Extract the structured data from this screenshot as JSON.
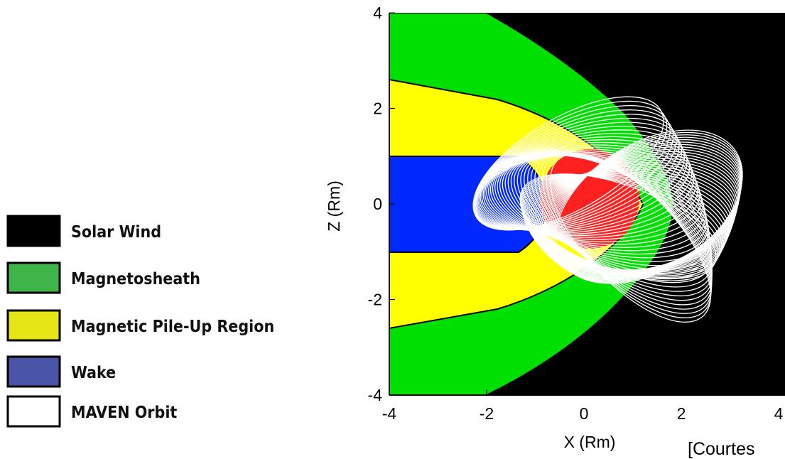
{
  "legend": {
    "items": [
      {
        "label": "Solar Wind",
        "color": "#000000"
      },
      {
        "label": "Magnetosheath",
        "color": "#3fb549"
      },
      {
        "label": "Magnetic Pile-Up Region",
        "color": "#e6e617"
      },
      {
        "label": "Wake",
        "color": "#4a55a8"
      },
      {
        "label": "MAVEN Orbit",
        "color": "#ffffff"
      }
    ]
  },
  "plot": {
    "xlabel": "X (Rm)",
    "ylabel": "Z (Rm)",
    "xticks": [
      -4,
      -2,
      0,
      2,
      4
    ],
    "yticks": [
      4,
      2,
      0,
      -2,
      -4
    ],
    "xlim": [
      -4,
      4
    ],
    "ylim": [
      -4,
      4
    ]
  },
  "caption": "[Courtes"
}
